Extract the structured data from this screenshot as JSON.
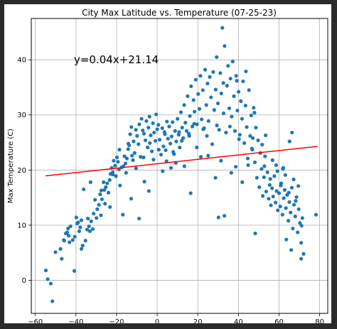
{
  "chart_data": {
    "type": "scatter",
    "title": "City Max Latitude vs. Temperature (07-25-23)",
    "xlabel": "",
    "ylabel": "Max Temperature (C)",
    "xlim": [
      -62,
      84
    ],
    "ylim": [
      -6,
      47.5
    ],
    "xticks": [
      -60,
      -40,
      -20,
      0,
      20,
      40,
      60,
      80
    ],
    "yticks": [
      0,
      10,
      20,
      30,
      40
    ],
    "grid": true,
    "annotation": "y=0.04x+21.14",
    "regression": {
      "slope": 0.04,
      "intercept": 21.14,
      "x_range": [
        -55,
        79
      ],
      "color": "#ff0000"
    },
    "marker_color": "#1f77b4",
    "points": [
      [
        -54.8,
        1.8
      ],
      [
        -53.9,
        0.2
      ],
      [
        -52.4,
        -0.6
      ],
      [
        -51.6,
        -3.8
      ],
      [
        -50.1,
        5.1
      ],
      [
        -47.6,
        5.7
      ],
      [
        -47,
        3.9
      ],
      [
        -46,
        7.3
      ],
      [
        -45.8,
        7.2
      ],
      [
        -45,
        8.5
      ],
      [
        -44.3,
        8.7
      ],
      [
        -43.9,
        9.4
      ],
      [
        -43.6,
        8.1
      ],
      [
        -42.7,
        9.8
      ],
      [
        -40.8,
        1.7
      ],
      [
        -41.6,
        7.3
      ],
      [
        -38.4,
        8.9
      ],
      [
        -40.6,
        7.9
      ],
      [
        -39.4,
        10.3
      ],
      [
        -38.9,
        10.5
      ],
      [
        -37.9,
        9.6
      ],
      [
        -37.3,
        10.9
      ],
      [
        -37.3,
        5.7
      ],
      [
        -36.7,
        6.3
      ],
      [
        -35.3,
        7.2
      ],
      [
        -34.5,
        9.2
      ],
      [
        -33.6,
        9.8
      ],
      [
        -33.1,
        8.9
      ],
      [
        -32.5,
        10.7
      ],
      [
        -31.7,
        9.3
      ],
      [
        -31.3,
        12.1
      ],
      [
        -29.9,
        11.3
      ],
      [
        -29.5,
        12.9
      ],
      [
        -28.7,
        13.7
      ],
      [
        -28.1,
        15.6
      ],
      [
        -27.5,
        16.3
      ],
      [
        -27.2,
        14.7
      ],
      [
        -26.4,
        17.8
      ],
      [
        -26,
        16.4
      ],
      [
        -25.3,
        16.9
      ],
      [
        -24.6,
        17.6
      ],
      [
        -24,
        15.9
      ],
      [
        -23.4,
        18.2
      ],
      [
        -23,
        19.3
      ],
      [
        -22.4,
        20.4
      ],
      [
        -21.8,
        19.2
      ],
      [
        -21.4,
        21.7
      ],
      [
        -20.7,
        20.8
      ],
      [
        -20.3,
        18.9
      ],
      [
        -19.8,
        22.3
      ],
      [
        -19.3,
        21.5
      ],
      [
        -18.6,
        23.7
      ],
      [
        -18.3,
        17.2
      ],
      [
        -17.5,
        20.5
      ],
      [
        -16.6,
        20.7
      ],
      [
        -16.1,
        22.5
      ],
      [
        -15.6,
        21.2
      ],
      [
        -14.9,
        22.1
      ],
      [
        -14.3,
        23.8
      ],
      [
        -13.8,
        24.5
      ],
      [
        -13.3,
        26.5
      ],
      [
        -12.7,
        27.8
      ],
      [
        -12.4,
        22.6
      ],
      [
        -11.6,
        25.2
      ],
      [
        -11.1,
        23.1
      ],
      [
        -10.5,
        27.3
      ],
      [
        -9.9,
        26.2
      ],
      [
        -9.2,
        24.7
      ],
      [
        -8.8,
        28.3
      ],
      [
        -8.2,
        22.4
      ],
      [
        -7.7,
        29.3
      ],
      [
        -7.1,
        27.2
      ],
      [
        -6.5,
        26.6
      ],
      [
        -5.8,
        25.4
      ],
      [
        -5.3,
        28.9
      ],
      [
        -4.7,
        24.1
      ],
      [
        -4.3,
        27.7
      ],
      [
        -3.8,
        29.7
      ],
      [
        -3.2,
        26.3
      ],
      [
        -2.6,
        23.4
      ],
      [
        -2.1,
        28.5
      ],
      [
        -1.5,
        26.8
      ],
      [
        -0.9,
        25.3
      ],
      [
        -0.5,
        30.1
      ],
      [
        0,
        27.4
      ],
      [
        0.6,
        28.2
      ],
      [
        1.2,
        25.5
      ],
      [
        1.9,
        22.8
      ],
      [
        2.5,
        27.6
      ],
      [
        3.1,
        24.3
      ],
      [
        3.6,
        26.9
      ],
      [
        4.2,
        23.6
      ],
      [
        4.8,
        28.8
      ],
      [
        5.3,
        25.7
      ],
      [
        5.9,
        27.9
      ],
      [
        6.5,
        24.8
      ],
      [
        7.1,
        26.1
      ],
      [
        7.6,
        28.7
      ],
      [
        8.3,
        22.9
      ],
      [
        8.8,
        27.1
      ],
      [
        9.4,
        25.2
      ],
      [
        10,
        29.3
      ],
      [
        10.6,
        26.4
      ],
      [
        11.1,
        24.1
      ],
      [
        11.7,
        30.5
      ],
      [
        12.3,
        27.7
      ],
      [
        12.8,
        25.8
      ],
      [
        13.3,
        31.8
      ],
      [
        13.9,
        28.6
      ],
      [
        14.5,
        27.1
      ],
      [
        15,
        33.4
      ],
      [
        15.6,
        26.6
      ],
      [
        16.1,
        29.8
      ],
      [
        16.7,
        35.2
      ],
      [
        17.3,
        27.9
      ],
      [
        17.9,
        32.7
      ],
      [
        18.4,
        30.6
      ],
      [
        19,
        36.4
      ],
      [
        19.6,
        28.3
      ],
      [
        20.2,
        33.8
      ],
      [
        20.8,
        31.1
      ],
      [
        21.3,
        37.1
      ],
      [
        21.9,
        29.2
      ],
      [
        22.5,
        34.5
      ],
      [
        23.1,
        27.6
      ],
      [
        23.6,
        38.2
      ],
      [
        24.2,
        31.8
      ],
      [
        24.8,
        35.7
      ],
      [
        25.3,
        28.9
      ],
      [
        25.9,
        36.9
      ],
      [
        26.5,
        33.2
      ],
      [
        27.1,
        24.7
      ],
      [
        27.6,
        37.8
      ],
      [
        28.1,
        30.9
      ],
      [
        28.8,
        34.6
      ],
      [
        29.3,
        40.5
      ],
      [
        29.9,
        32.1
      ],
      [
        30.5,
        27.3
      ],
      [
        31.1,
        37.6
      ],
      [
        31.6,
        33.9
      ],
      [
        32.1,
        45.8
      ],
      [
        32.7,
        30.3
      ],
      [
        33.2,
        42.5
      ],
      [
        33.9,
        26.8
      ],
      [
        34.4,
        35.3
      ],
      [
        34.9,
        38.9
      ],
      [
        35.5,
        31.2
      ],
      [
        36.1,
        36.6
      ],
      [
        36.7,
        29.7
      ],
      [
        37.2,
        39.7
      ],
      [
        37.8,
        33.4
      ],
      [
        38.3,
        27.1
      ],
      [
        38.9,
        37.1
      ],
      [
        39.5,
        30.8
      ],
      [
        40.1,
        34.2
      ],
      [
        40.7,
        26.4
      ],
      [
        41.2,
        32.5
      ],
      [
        41.8,
        29.3
      ],
      [
        42.3,
        36.1
      ],
      [
        42.9,
        24.9
      ],
      [
        43.5,
        31.7
      ],
      [
        44.1,
        27.8
      ],
      [
        44.6,
        22.1
      ],
      [
        45.2,
        34.5
      ],
      [
        45.8,
        26.2
      ],
      [
        46.3,
        29.9
      ],
      [
        46.9,
        23.7
      ],
      [
        47.5,
        31.3
      ],
      [
        48.1,
        21.4
      ],
      [
        48.6,
        27.7
      ],
      [
        49.1,
        18.6
      ],
      [
        49.7,
        25.4
      ],
      [
        50.3,
        16.9
      ],
      [
        50.8,
        23.1
      ],
      [
        51.4,
        20.2
      ],
      [
        52,
        15.3
      ],
      [
        52.6,
        18.7
      ],
      [
        53.1,
        22.5
      ],
      [
        53.7,
        16.1
      ],
      [
        54.3,
        19.6
      ],
      [
        54.9,
        14.8
      ],
      [
        55.4,
        17.3
      ],
      [
        56,
        13.6
      ],
      [
        56.6,
        16.7
      ],
      [
        57.1,
        15.2
      ],
      [
        57.7,
        18.9
      ],
      [
        58.3,
        14.1
      ],
      [
        58.8,
        16.2
      ],
      [
        59.4,
        12.7
      ],
      [
        60,
        15.8
      ],
      [
        60.6,
        13.4
      ],
      [
        61.1,
        17.6
      ],
      [
        61.7,
        11.9
      ],
      [
        62.3,
        14.9
      ],
      [
        62.8,
        16.4
      ],
      [
        63.4,
        13.1
      ],
      [
        64,
        15.5
      ],
      [
        64.6,
        10.8
      ],
      [
        65.1,
        14.2
      ],
      [
        65.7,
        12.3
      ],
      [
        66.3,
        16.8
      ],
      [
        66.8,
        9.4
      ],
      [
        67.4,
        13.7
      ],
      [
        68,
        11.6
      ],
      [
        68.6,
        15.1
      ],
      [
        69.2,
        8.7
      ],
      [
        69.7,
        12.9
      ],
      [
        70.3,
        10.4
      ],
      [
        70.9,
        6.8
      ],
      [
        71.5,
        11.3
      ],
      [
        66,
        5.5
      ],
      [
        63.6,
        7.4
      ],
      [
        70.9,
        3.9
      ],
      [
        72.1,
        4.8
      ],
      [
        66.4,
        26.8
      ],
      [
        65.2,
        25.2
      ],
      [
        61.9,
        20.2
      ],
      [
        48.3,
        8.5
      ],
      [
        78.2,
        11.9
      ],
      [
        16.5,
        15.8
      ],
      [
        30.2,
        11.4
      ],
      [
        33.1,
        11.7
      ],
      [
        -8.9,
        11.2
      ],
      [
        -12.8,
        14.8
      ],
      [
        -4.1,
        16.2
      ],
      [
        -6.3,
        17.9
      ],
      [
        2.7,
        19.8
      ],
      [
        9.2,
        21.3
      ],
      [
        13.4,
        20.7
      ],
      [
        21.5,
        22.4
      ],
      [
        36.5,
        19.5
      ],
      [
        41.9,
        17.8
      ],
      [
        44.8,
        20.9
      ],
      [
        28.7,
        18.6
      ],
      [
        4.6,
        21.6
      ],
      [
        -16.9,
        11.9
      ],
      [
        -27.7,
        11.8
      ],
      [
        -23.2,
        13.3
      ],
      [
        -34.1,
        11.2
      ],
      [
        -30.6,
        14.6
      ],
      [
        -15.3,
        19.5
      ],
      [
        -10.4,
        20.3
      ],
      [
        -1.8,
        21.9
      ],
      [
        6.8,
        20.4
      ],
      [
        12.1,
        25.3
      ],
      [
        19.5,
        24.1
      ],
      [
        25.1,
        22.6
      ],
      [
        31.4,
        21.7
      ],
      [
        38.7,
        20.6
      ],
      [
        46.6,
        23.9
      ],
      [
        53.4,
        26.3
      ],
      [
        58.6,
        20.9
      ],
      [
        62.1,
        20.4
      ],
      [
        67.2,
        18.3
      ],
      [
        69.5,
        17.1
      ],
      [
        -36.2,
        16.5
      ],
      [
        -32.8,
        17.8
      ],
      [
        -21.9,
        19.6
      ],
      [
        -14.2,
        24.8
      ],
      [
        -6.7,
        22.3
      ],
      [
        0.8,
        23.7
      ],
      [
        7.9,
        23.3
      ],
      [
        15.8,
        26.2
      ],
      [
        22.7,
        27.4
      ],
      [
        29.4,
        28.1
      ],
      [
        35.8,
        27.9
      ],
      [
        40.3,
        25.6
      ],
      [
        47.1,
        25.8
      ],
      [
        51.7,
        24.6
      ],
      [
        56.8,
        21.8
      ],
      [
        59.2,
        19.8
      ],
      [
        63.1,
        19.1
      ],
      [
        -43.2,
        6.9
      ],
      [
        -39.8,
        11.4
      ],
      [
        -25.7,
        13.9
      ],
      [
        -18.8,
        20.1
      ],
      [
        -11.9,
        21.8
      ],
      [
        -3.6,
        24.9
      ],
      [
        3.8,
        26.5
      ],
      [
        10.8,
        26.9
      ],
      [
        18.2,
        28.4
      ],
      [
        24.5,
        26.2
      ],
      [
        32.6,
        35.8
      ],
      [
        39.2,
        36.2
      ],
      [
        43.7,
        37.9
      ],
      [
        47.9,
        30.4
      ],
      [
        52.8,
        20.7
      ],
      [
        55.7,
        18.4
      ],
      [
        60.9,
        17.2
      ],
      [
        64.8,
        15.9
      ],
      [
        68.2,
        14.4
      ],
      [
        71.1,
        9.9
      ]
    ]
  }
}
